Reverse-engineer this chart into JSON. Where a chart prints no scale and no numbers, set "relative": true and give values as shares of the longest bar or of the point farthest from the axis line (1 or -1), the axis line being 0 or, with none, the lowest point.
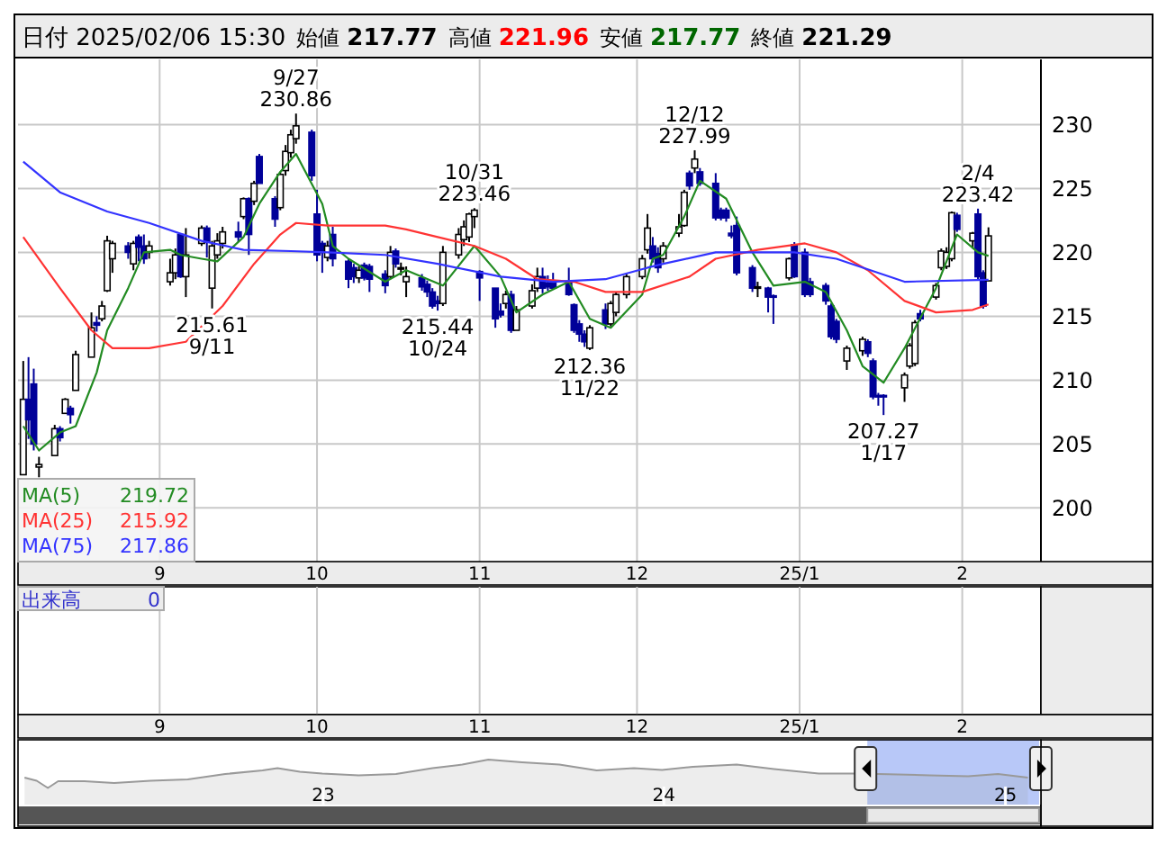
{
  "chart_data": [
    {
      "type": "candlestick",
      "title": "日付 2025/02/06 15:30",
      "annotations": [
        "始値 217.77",
        "高値 221.96",
        "安値 217.77",
        "終値 221.29",
        "出来高 0",
        "219.72",
        "215.92",
        "217.86",
        {
          "text": "9/27\n230.86",
          "x": "2024-09-27",
          "y": 230.86
        },
        {
          "text": "215.61\n9/11",
          "x": "2024-09-11",
          "y": 215.61
        },
        {
          "text": "10/31\n223.46",
          "x": "2024-10-31",
          "y": 223.46
        },
        {
          "text": "215.44\n10/24",
          "x": "2024-10-24",
          "y": 215.44
        },
        {
          "text": "212.36\n11/22",
          "x": "2024-11-22",
          "y": 212.36
        },
        {
          "text": "12/12\n227.99",
          "x": "2024-12-12",
          "y": 227.99
        },
        {
          "text": "207.27\n1/17",
          "x": "2025-01-17",
          "y": 207.27
        },
        {
          "text": "2/4\n223.42",
          "x": "2025-02-04",
          "y": 223.42
        }
      ],
      "colors": [
        "#ffffff",
        "#000099",
        "#000099",
        "#ffffff",
        "#ffffff",
        "#000099",
        "#ffffff",
        "#000099",
        "#ffffff",
        "#ffffff",
        "#000099",
        "#ffffff",
        "#ffffff",
        "#ffffff",
        "#000099",
        "#ffffff",
        "#000099",
        "#000099",
        "#ffffff",
        "#ffffff",
        "#ffffff",
        "#000099",
        "#ffffff",
        "#ffffff",
        "#000099",
        "#ffffff",
        "#ffffff",
        "#ffffff",
        "#000099",
        "#ffffff",
        "#000099",
        "#ffffff",
        "#000099",
        "#000099",
        "#ffffff",
        "#ffffff",
        "#ffffff",
        "#ffffff",
        "#000099",
        "#000099",
        "#000099",
        "#ffffff",
        "#000099",
        "#000099",
        "#000099",
        "#ffffff",
        "#000099",
        "#000099",
        "#000099",
        "#ffffff",
        "#000099",
        "#ffffff",
        "#ffffff",
        "#000099",
        "#000099",
        "#000099",
        "#000099",
        "#ffffff",
        "#ffffff",
        "#ffffff",
        "#ffffff",
        "#ffffff",
        "#000099",
        "#000099",
        "#000099",
        "#ffffff",
        "#000099",
        "#ffffff",
        "#ffffff",
        "#ffffff",
        "#000099",
        "#000099",
        "#000099",
        "#000099",
        "#000099",
        "#000099",
        "#000099",
        "#ffffff",
        "#000099",
        "#ffffff",
        "#ffffff",
        "#ffffff",
        "#ffffff",
        "#ffffff",
        "#000099",
        "#000099",
        "#ffffff",
        "#ffffff",
        "#ffffff",
        "#000099",
        "#ffffff",
        "#000099",
        "#000099",
        "#000099",
        "#000099",
        "#000099",
        "#000099",
        "#000099",
        "#ffffff",
        "#000099",
        "#000099",
        "#ffffff",
        "#000099",
        "#000099",
        "#000099",
        "#000099",
        "#000099",
        "#000099",
        "#ffffff",
        "#ffffff",
        "#000099",
        "#000099",
        "#000099",
        "#000099",
        "#ffffff",
        "#ffffff",
        "#ffffff",
        "#000099",
        "#ffffff",
        "#ffffff",
        "#ffffff",
        "#ffffff",
        "#000099",
        "#ffffff",
        "#000099",
        "#000099",
        "#ffffff"
      ],
      "x": [
        "2024-08-06",
        "2024-08-07",
        "2024-08-08",
        "2024-08-09",
        "2024-08-12",
        "2024-08-13",
        "2024-08-14",
        "2024-08-15",
        "2024-08-16",
        "2024-08-19",
        "2024-08-20",
        "2024-08-21",
        "2024-08-22",
        "2024-08-23",
        "2024-08-26",
        "2024-08-27",
        "2024-08-28",
        "2024-08-29",
        "2024-08-30",
        "2024-09-03",
        "2024-09-04",
        "2024-09-05",
        "2024-09-06",
        "2024-09-09",
        "2024-09-10",
        "2024-09-11",
        "2024-09-12",
        "2024-09-13",
        "2024-09-16",
        "2024-09-17",
        "2024-09-18",
        "2024-09-19",
        "2024-09-20",
        "2024-09-23",
        "2024-09-24",
        "2024-09-25",
        "2024-09-26",
        "2024-09-27",
        "2024-09-30",
        "2024-10-01",
        "2024-10-02",
        "2024-10-03",
        "2024-10-04",
        "2024-10-07",
        "2024-10-08",
        "2024-10-09",
        "2024-10-10",
        "2024-10-11",
        "2024-10-14",
        "2024-10-15",
        "2024-10-16",
        "2024-10-17",
        "2024-10-18",
        "2024-10-21",
        "2024-10-22",
        "2024-10-23",
        "2024-10-24",
        "2024-10-25",
        "2024-10-28",
        "2024-10-29",
        "2024-10-30",
        "2024-10-31",
        "2024-11-01",
        "2024-11-04",
        "2024-11-05",
        "2024-11-06",
        "2024-11-07",
        "2024-11-08",
        "2024-11-11",
        "2024-11-12",
        "2024-11-13",
        "2024-11-14",
        "2024-11-15",
        "2024-11-18",
        "2024-11-19",
        "2024-11-20",
        "2024-11-21",
        "2024-11-22",
        "2024-11-25",
        "2024-11-26",
        "2024-11-27",
        "2024-11-29",
        "2024-12-02",
        "2024-12-03",
        "2024-12-04",
        "2024-12-05",
        "2024-12-06",
        "2024-12-09",
        "2024-12-10",
        "2024-12-11",
        "2024-12-12",
        "2024-12-13",
        "2024-12-16",
        "2024-12-17",
        "2024-12-18",
        "2024-12-19",
        "2024-12-20",
        "2024-12-23",
        "2024-12-24",
        "2024-12-26",
        "2024-12-27",
        "2024-12-30",
        "2024-12-31",
        "2025-01-02",
        "2025-01-03",
        "2025-01-06",
        "2025-01-07",
        "2025-01-08",
        "2025-01-10",
        "2025-01-13",
        "2025-01-14",
        "2025-01-15",
        "2025-01-16",
        "2025-01-17",
        "2025-01-21",
        "2025-01-22",
        "2025-01-23",
        "2025-01-24",
        "2025-01-27",
        "2025-01-28",
        "2025-01-29",
        "2025-01-30",
        "2025-01-31",
        "2025-02-03",
        "2025-02-04",
        "2025-02-05",
        "2025-02-06"
      ],
      "ohlc": [
        [
          202.6,
          211.5,
          202.6,
          208.5
        ],
        [
          208.5,
          211.8,
          205.4,
          206.9
        ],
        [
          209.7,
          210.9,
          204.5,
          205.0
        ],
        [
          203.2,
          204.0,
          202.4,
          203.4
        ],
        [
          204.1,
          206.5,
          204.1,
          206.2
        ],
        [
          206.2,
          206.4,
          205.2,
          205.5
        ],
        [
          207.4,
          208.6,
          207.4,
          208.5
        ],
        [
          207.8,
          208.0,
          206.6,
          207.3
        ],
        [
          209.2,
          212.3,
          209.2,
          212.0
        ],
        [
          211.8,
          215.3,
          211.8,
          214.1
        ],
        [
          214.5,
          215.0,
          213.8,
          214.3
        ],
        [
          214.8,
          216.2,
          214.6,
          215.8
        ],
        [
          217.0,
          221.3,
          216.9,
          220.9
        ],
        [
          219.5,
          220.9,
          218.4,
          220.7
        ],
        [
          220.5,
          220.8,
          219.5,
          220.0
        ],
        [
          219.1,
          220.9,
          218.6,
          220.7
        ],
        [
          221.2,
          221.4,
          219.3,
          220.4
        ],
        [
          220.5,
          221.4,
          219.1,
          219.5
        ],
        [
          220.0,
          220.9,
          219.5,
          220.5
        ],
        [
          217.7,
          219.5,
          217.4,
          218.4
        ],
        [
          218.4,
          220.3,
          217.9,
          219.8
        ],
        [
          221.4,
          221.5,
          218.0,
          218.1
        ],
        [
          218.1,
          221.9,
          216.5,
          219.8
        ],
        [
          220.7,
          222.1,
          220.5,
          221.9
        ],
        [
          221.9,
          222.1,
          219.6,
          220.8
        ],
        [
          217.2,
          220.9,
          215.61,
          220.5
        ],
        [
          219.8,
          221.5,
          219.5,
          220.9
        ],
        [
          220.7,
          222.0,
          220.3,
          221.6
        ],
        [
          221.6,
          222.4,
          220.8,
          221.2
        ],
        [
          222.8,
          224.3,
          222.6,
          224.2
        ],
        [
          224.2,
          224.3,
          219.8,
          221.4
        ],
        [
          224.0,
          225.6,
          223.7,
          225.4
        ],
        [
          227.5,
          227.7,
          225.4,
          225.4
        ],
        [
          224.2,
          224.4,
          222.0,
          222.6
        ],
        [
          223.5,
          226.3,
          223.3,
          226.1
        ],
        [
          226.4,
          228.4,
          226.0,
          227.9
        ],
        [
          227.8,
          229.6,
          227.4,
          229.2
        ],
        [
          228.9,
          230.86,
          228.5,
          229.9
        ],
        [
          229.4,
          229.6,
          225.6,
          226.0
        ],
        [
          223.0,
          224.9,
          219.3,
          219.8
        ],
        [
          220.7,
          220.9,
          218.4,
          220.0
        ],
        [
          219.6,
          220.9,
          219.3,
          220.5
        ],
        [
          221.4,
          222.0,
          218.9,
          219.5
        ],
        [
          219.3,
          219.5,
          217.2,
          217.9
        ],
        [
          218.8,
          219.1,
          217.6,
          218.1
        ],
        [
          218.0,
          218.9,
          217.6,
          218.6
        ],
        [
          219.0,
          219.2,
          217.8,
          218.0
        ],
        [
          218.9,
          219.1,
          216.9,
          217.9
        ],
        [
          218.3,
          218.6,
          216.8,
          217.4
        ],
        [
          218.1,
          220.5,
          217.9,
          220.0
        ],
        [
          220.1,
          220.3,
          218.8,
          219.1
        ],
        [
          218.7,
          219.2,
          218.2,
          218.8
        ],
        [
          217.7,
          218.9,
          216.5,
          218.1
        ],
        [
          218.0,
          218.3,
          217.0,
          217.3
        ],
        [
          217.5,
          217.8,
          216.5,
          216.9
        ],
        [
          216.9,
          217.2,
          215.6,
          215.8
        ],
        [
          216.2,
          216.6,
          215.44,
          216.0
        ],
        [
          216.0,
          220.5,
          215.8,
          220.0
        ],
        [
          219.8,
          221.9,
          219.5,
          221.4
        ],
        [
          221.0,
          222.5,
          220.5,
          222.0
        ],
        [
          221.2,
          223.1,
          220.8,
          223.0
        ],
        [
          222.8,
          223.46,
          221.9,
          223.3
        ],
        [
          218.5,
          218.6,
          216.2,
          218.0
        ],
        [
          217.2,
          217.2,
          214.1,
          214.8
        ],
        [
          215.4,
          216.0,
          214.9,
          215.1
        ],
        [
          216.0,
          217.0,
          215.6,
          216.7
        ],
        [
          216.7,
          217.0,
          213.7,
          213.9
        ],
        [
          213.9,
          215.8,
          213.9,
          215.5
        ],
        [
          215.8,
          217.5,
          215.6,
          217.0
        ],
        [
          217.2,
          218.8,
          216.9,
          218.1
        ],
        [
          218.1,
          218.8,
          216.8,
          217.2
        ],
        [
          217.6,
          218.2,
          217.0,
          217.3
        ],
        [
          217.6,
          218.4,
          217.1,
          217.2
        ],
        [
          217.7,
          218.8,
          216.6,
          216.7
        ],
        [
          215.9,
          216.0,
          213.7,
          213.9
        ],
        [
          214.4,
          214.7,
          213.0,
          213.6
        ],
        [
          213.6,
          213.9,
          212.6,
          213.0
        ],
        [
          212.5,
          214.3,
          212.36,
          214.1
        ],
        [
          215.5,
          216.0,
          214.0,
          214.4
        ],
        [
          214.4,
          216.2,
          214.2,
          216.0
        ],
        [
          215.3,
          216.9,
          215.0,
          216.7
        ],
        [
          216.7,
          218.3,
          216.4,
          218.1
        ],
        [
          218.1,
          219.8,
          217.9,
          219.5
        ],
        [
          220.2,
          223.0,
          219.9,
          221.9
        ],
        [
          220.5,
          221.2,
          219.2,
          219.5
        ],
        [
          219.9,
          220.4,
          218.4,
          218.8
        ],
        [
          219.5,
          220.8,
          219.2,
          220.5
        ],
        [
          221.5,
          223.0,
          221.2,
          222.0
        ],
        [
          222.1,
          224.9,
          222.0,
          224.7
        ],
        [
          226.2,
          226.4,
          224.9,
          225.2
        ],
        [
          226.6,
          227.99,
          226.2,
          227.3
        ],
        [
          226.3,
          226.6,
          225.2,
          225.4
        ],
        [
          225.4,
          226.2,
          222.5,
          222.7
        ],
        [
          223.3,
          223.5,
          222.5,
          222.7
        ],
        [
          223.3,
          223.5,
          222.4,
          222.7
        ],
        [
          221.5,
          222.1,
          221.1,
          221.3
        ],
        [
          222.1,
          222.8,
          218.2,
          218.4
        ],
        [
          218.8,
          219.0,
          216.9,
          217.2
        ],
        [
          217.3,
          217.7,
          216.5,
          217.3
        ],
        [
          217.2,
          217.3,
          215.3,
          216.5
        ],
        [
          216.6,
          216.7,
          214.4,
          216.5
        ],
        [
          218.0,
          219.6,
          217.8,
          219.5
        ],
        [
          220.6,
          220.8,
          218.0,
          218.1
        ],
        [
          220.0,
          220.3,
          216.5,
          216.7
        ],
        [
          217.7,
          218.0,
          216.5,
          216.7
        ],
        [
          217.4,
          217.6,
          215.9,
          216.2
        ],
        [
          215.8,
          216.0,
          213.2,
          213.4
        ],
        [
          214.6,
          214.8,
          212.9,
          213.2
        ],
        [
          211.5,
          212.7,
          210.8,
          212.5
        ],
        [
          212.3,
          213.4,
          211.9,
          213.2
        ],
        [
          213.0,
          213.2,
          211.8,
          212.1
        ],
        [
          211.5,
          211.7,
          208.5,
          208.7
        ],
        [
          208.8,
          209.0,
          208.0,
          208.7
        ],
        [
          208.8,
          208.9,
          207.27,
          208.7
        ],
        [
          209.4,
          210.6,
          208.3,
          210.4
        ],
        [
          211.1,
          212.9,
          210.9,
          212.7
        ],
        [
          211.3,
          214.7,
          211.1,
          214.5
        ],
        [
          215.2,
          215.5,
          214.6,
          214.8
        ],
        [
          216.5,
          217.6,
          216.3,
          217.4
        ],
        [
          218.8,
          220.3,
          218.6,
          220.1
        ],
        [
          218.9,
          220.4,
          218.7,
          220.0
        ],
        [
          219.5,
          223.2,
          219.3,
          223.1
        ],
        [
          222.9,
          223.1,
          221.6,
          221.8
        ],
        [
          220.9,
          221.6,
          220.3,
          221.5
        ],
        [
          223.0,
          223.42,
          217.9,
          218.1
        ],
        [
          218.4,
          218.6,
          215.6,
          215.8
        ],
        [
          217.77,
          221.96,
          217.77,
          221.29
        ]
      ],
      "series": [
        {
          "type": "line",
          "name": "MA(5)",
          "color": "#228b22",
          "x": [
            "2024-08-06",
            "2024-08-09",
            "2024-08-13",
            "2024-08-16",
            "2024-08-20",
            "2024-08-22",
            "2024-08-26",
            "2024-08-29",
            "2024-09-03",
            "2024-09-05",
            "2024-09-09",
            "2024-09-12",
            "2024-09-17",
            "2024-09-20",
            "2024-09-24",
            "2024-09-27",
            "2024-10-02",
            "2024-10-04",
            "2024-10-07",
            "2024-10-14",
            "2024-10-18",
            "2024-10-25",
            "2024-10-31",
            "2024-11-05",
            "2024-11-08",
            "2024-11-13",
            "2024-11-18",
            "2024-11-22",
            "2024-11-26",
            "2024-12-02",
            "2024-12-04",
            "2024-12-06",
            "2024-12-10",
            "2024-12-13",
            "2024-12-18",
            "2024-12-23",
            "2024-12-27",
            "2025-01-02",
            "2025-01-06",
            "2025-01-10",
            "2025-01-13",
            "2025-01-17",
            "2025-01-21",
            "2025-01-27",
            "2025-01-31",
            "2025-02-04",
            "2025-02-06"
          ],
          "values": [
            206.4,
            204.5,
            205.9,
            206.4,
            210.6,
            213.9,
            217.2,
            220.0,
            220.2,
            219.8,
            219.5,
            219.3,
            221.2,
            223.8,
            226.3,
            227.7,
            223.8,
            220.5,
            219.5,
            217.7,
            218.6,
            217.4,
            220.5,
            218.1,
            215.3,
            216.7,
            217.7,
            214.8,
            214.1,
            216.7,
            219.5,
            219.8,
            222.8,
            225.6,
            224.2,
            220.0,
            217.4,
            217.7,
            216.9,
            213.9,
            211.1,
            209.8,
            212.5,
            217.2,
            221.4,
            220.0,
            219.72
          ]
        },
        {
          "type": "line",
          "name": "MA(25)",
          "color": "#ff3333",
          "x": [
            "2024-08-06",
            "2024-08-13",
            "2024-08-19",
            "2024-08-23",
            "2024-08-30",
            "2024-09-06",
            "2024-09-13",
            "2024-09-19",
            "2024-09-24",
            "2024-09-27",
            "2024-10-03",
            "2024-10-14",
            "2024-10-18",
            "2024-10-24",
            "2024-10-31",
            "2024-11-06",
            "2024-11-12",
            "2024-11-19",
            "2024-11-25",
            "2024-12-02",
            "2024-12-11",
            "2024-12-16",
            "2024-12-24",
            "2025-01-02",
            "2025-01-08",
            "2025-01-14",
            "2025-01-21",
            "2025-01-27",
            "2025-02-03",
            "2025-02-06"
          ],
          "values": [
            221.2,
            217.2,
            213.9,
            212.5,
            212.5,
            213.0,
            215.8,
            219.1,
            221.4,
            222.3,
            222.1,
            222.1,
            221.8,
            221.2,
            220.5,
            219.5,
            217.9,
            217.7,
            216.9,
            216.9,
            218.1,
            219.5,
            220.2,
            220.7,
            220.0,
            218.6,
            216.2,
            215.3,
            215.5,
            215.92
          ]
        },
        {
          "type": "line",
          "name": "MA(75)",
          "color": "#3333ff",
          "x": [
            "2024-08-06",
            "2024-08-13",
            "2024-08-22",
            "2024-08-30",
            "2024-09-09",
            "2024-09-17",
            "2024-09-26",
            "2024-10-03",
            "2024-10-14",
            "2024-10-24",
            "2024-11-05",
            "2024-11-15",
            "2024-11-25",
            "2024-12-03",
            "2024-12-06",
            "2024-12-16",
            "2024-12-31",
            "2025-01-08",
            "2025-01-21",
            "2025-02-06"
          ],
          "values": [
            227.1,
            224.7,
            223.2,
            222.3,
            220.9,
            220.2,
            220.1,
            220.0,
            219.8,
            219.1,
            218.1,
            217.7,
            217.9,
            218.8,
            219.1,
            220.0,
            220.0,
            219.5,
            217.7,
            217.86
          ]
        }
      ],
      "xlim": [
        "2024-08-05",
        "2025-02-16"
      ],
      "xticks": [
        {
          "value": "2024-09-01",
          "label": "9"
        },
        {
          "value": "2024-10-01",
          "label": "10"
        },
        {
          "value": "2024-11-01",
          "label": "11"
        },
        {
          "value": "2024-12-01",
          "label": "12"
        },
        {
          "value": "2025-01-01",
          "label": "25/1"
        },
        {
          "value": "2025-02-01",
          "label": "2"
        }
      ],
      "ylim": [
        195.8,
        235.1
      ],
      "yticks": [
        200,
        205,
        210,
        215,
        220,
        225,
        230
      ],
      "grid": true,
      "legend": "bottom left"
    },
    {
      "type": "area",
      "relative": true,
      "color": "#999999",
      "x": [
        "2022-02-15",
        "2022-02-28",
        "2022-03-12",
        "2022-03-23",
        "2022-04-20",
        "2022-05-22",
        "2022-06-30",
        "2022-08-09",
        "2022-09-18",
        "2022-10-28",
        "2022-11-13",
        "2022-12-07",
        "2022-12-31",
        "2023-02-08",
        "2023-03-20",
        "2023-04-28",
        "2023-05-30",
        "2023-06-27",
        "2023-08-02",
        "2023-09-11",
        "2023-10-21",
        "2023-11-30",
        "2023-12-30",
        "2024-02-01",
        "2024-03-19",
        "2024-04-28",
        "2024-06-15",
        "2024-07-21",
        "2024-08-18",
        "2024-10-12",
        "2024-11-22",
        "2024-12-24",
        "2025-01-25"
      ],
      "values": [
        0.6,
        0.53,
        0.37,
        0.52,
        0.52,
        0.48,
        0.53,
        0.56,
        0.68,
        0.76,
        0.81,
        0.73,
        0.69,
        0.65,
        0.68,
        0.81,
        0.89,
        1.0,
        0.94,
        0.89,
        0.76,
        0.81,
        0.77,
        0.84,
        0.89,
        0.79,
        0.69,
        0.69,
        0.68,
        0.65,
        0.63,
        0.68,
        0.6
      ],
      "xlim": [
        "2022-02-08",
        "2025-02-08"
      ],
      "xticks": [
        {
          "value": "2023-01-01",
          "label": "23"
        },
        {
          "value": "2024-01-01",
          "label": "24"
        },
        {
          "value": "2025-01-01",
          "label": "25"
        }
      ],
      "bands": [
        {
          "axis": "x",
          "from": "2024-08-06",
          "to": "2025-02-06",
          "color": "#b8c8f8"
        }
      ]
    }
  ]
}
